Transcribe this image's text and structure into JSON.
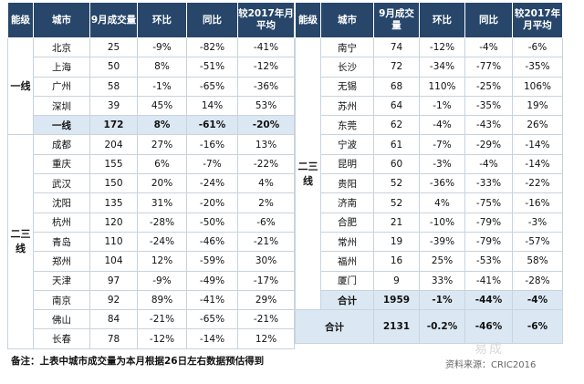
{
  "headers": {
    "tier": "能级",
    "city": "城市",
    "volume": "9月成交量",
    "mom": "环比",
    "yoy": "同比",
    "vs2017": "较2017年月平均"
  },
  "left": {
    "tier1_label": "一线",
    "tier1_rows": [
      {
        "city": "北京",
        "volume": "25",
        "mom": "-9%",
        "yoy": "-82%",
        "vs": "-41%"
      },
      {
        "city": "上海",
        "volume": "50",
        "mom": "8%",
        "yoy": "-51%",
        "vs": "-12%"
      },
      {
        "city": "广州",
        "volume": "58",
        "mom": "-1%",
        "yoy": "-65%",
        "vs": "-36%"
      },
      {
        "city": "深圳",
        "volume": "39",
        "mom": "45%",
        "yoy": "14%",
        "vs": "53%"
      }
    ],
    "tier1_sub": {
      "city": "一线",
      "volume": "172",
      "mom": "8%",
      "yoy": "-61%",
      "vs": "-20%"
    },
    "tier23_label": "二三线",
    "tier23_rows": [
      {
        "city": "成都",
        "volume": "204",
        "mom": "27%",
        "yoy": "-16%",
        "vs": "13%"
      },
      {
        "city": "重庆",
        "volume": "155",
        "mom": "6%",
        "yoy": "-7%",
        "vs": "-22%"
      },
      {
        "city": "武汉",
        "volume": "150",
        "mom": "20%",
        "yoy": "-24%",
        "vs": "4%"
      },
      {
        "city": "沈阳",
        "volume": "135",
        "mom": "31%",
        "yoy": "-20%",
        "vs": "2%"
      },
      {
        "city": "杭州",
        "volume": "120",
        "mom": "-28%",
        "yoy": "-50%",
        "vs": "-6%"
      },
      {
        "city": "青岛",
        "volume": "110",
        "mom": "-24%",
        "yoy": "-46%",
        "vs": "-21%"
      },
      {
        "city": "郑州",
        "volume": "104",
        "mom": "12%",
        "yoy": "-59%",
        "vs": "30%"
      },
      {
        "city": "天津",
        "volume": "97",
        "mom": "-9%",
        "yoy": "-49%",
        "vs": "-17%"
      },
      {
        "city": "南京",
        "volume": "92",
        "mom": "89%",
        "yoy": "-41%",
        "vs": "29%"
      },
      {
        "city": "佛山",
        "volume": "84",
        "mom": "-21%",
        "yoy": "-65%",
        "vs": "-21%"
      },
      {
        "city": "长春",
        "volume": "78",
        "mom": "-12%",
        "yoy": "-14%",
        "vs": "12%"
      }
    ]
  },
  "right": {
    "tier23_label": "二三线",
    "rows": [
      {
        "city": "南宁",
        "volume": "74",
        "mom": "-12%",
        "yoy": "-4%",
        "vs": "-6%"
      },
      {
        "city": "长沙",
        "volume": "72",
        "mom": "-34%",
        "yoy": "-77%",
        "vs": "-35%"
      },
      {
        "city": "无锡",
        "volume": "68",
        "mom": "110%",
        "yoy": "-25%",
        "vs": "106%"
      },
      {
        "city": "苏州",
        "volume": "64",
        "mom": "-1%",
        "yoy": "-35%",
        "vs": "19%"
      },
      {
        "city": "东莞",
        "volume": "62",
        "mom": "-4%",
        "yoy": "-43%",
        "vs": "26%"
      },
      {
        "city": "宁波",
        "volume": "61",
        "mom": "-7%",
        "yoy": "-29%",
        "vs": "-14%"
      },
      {
        "city": "昆明",
        "volume": "60",
        "mom": "-3%",
        "yoy": "-4%",
        "vs": "-14%"
      },
      {
        "city": "贵阳",
        "volume": "52",
        "mom": "-36%",
        "yoy": "-33%",
        "vs": "-22%"
      },
      {
        "city": "济南",
        "volume": "52",
        "mom": "4%",
        "yoy": "-75%",
        "vs": "-16%"
      },
      {
        "city": "合肥",
        "volume": "21",
        "mom": "-10%",
        "yoy": "-79%",
        "vs": "-3%"
      },
      {
        "city": "常州",
        "volume": "19",
        "mom": "-39%",
        "yoy": "-79%",
        "vs": "-57%"
      },
      {
        "city": "福州",
        "volume": "16",
        "mom": "25%",
        "yoy": "-53%",
        "vs": "58%"
      },
      {
        "city": "厦门",
        "volume": "9",
        "mom": "33%",
        "yoy": "-41%",
        "vs": "-28%"
      }
    ],
    "tier23_sub": {
      "city": "合计",
      "volume": "1959",
      "mom": "-1%",
      "yoy": "-44%",
      "vs": "-4%"
    },
    "grand": {
      "label": "合计",
      "volume": "2131",
      "mom": "-0.2%",
      "yoy": "-46%",
      "vs": "-6%"
    }
  },
  "footer": {
    "note": "备注：上表中城市成交量为本月根据26日左右数据预估得到",
    "source": "资料来源：CRIC2016",
    "watermark": "易成"
  },
  "colors": {
    "header_bg": "#27466a",
    "subtotal_bg": "#dbe8f3",
    "border": "#c9d3dc"
  }
}
